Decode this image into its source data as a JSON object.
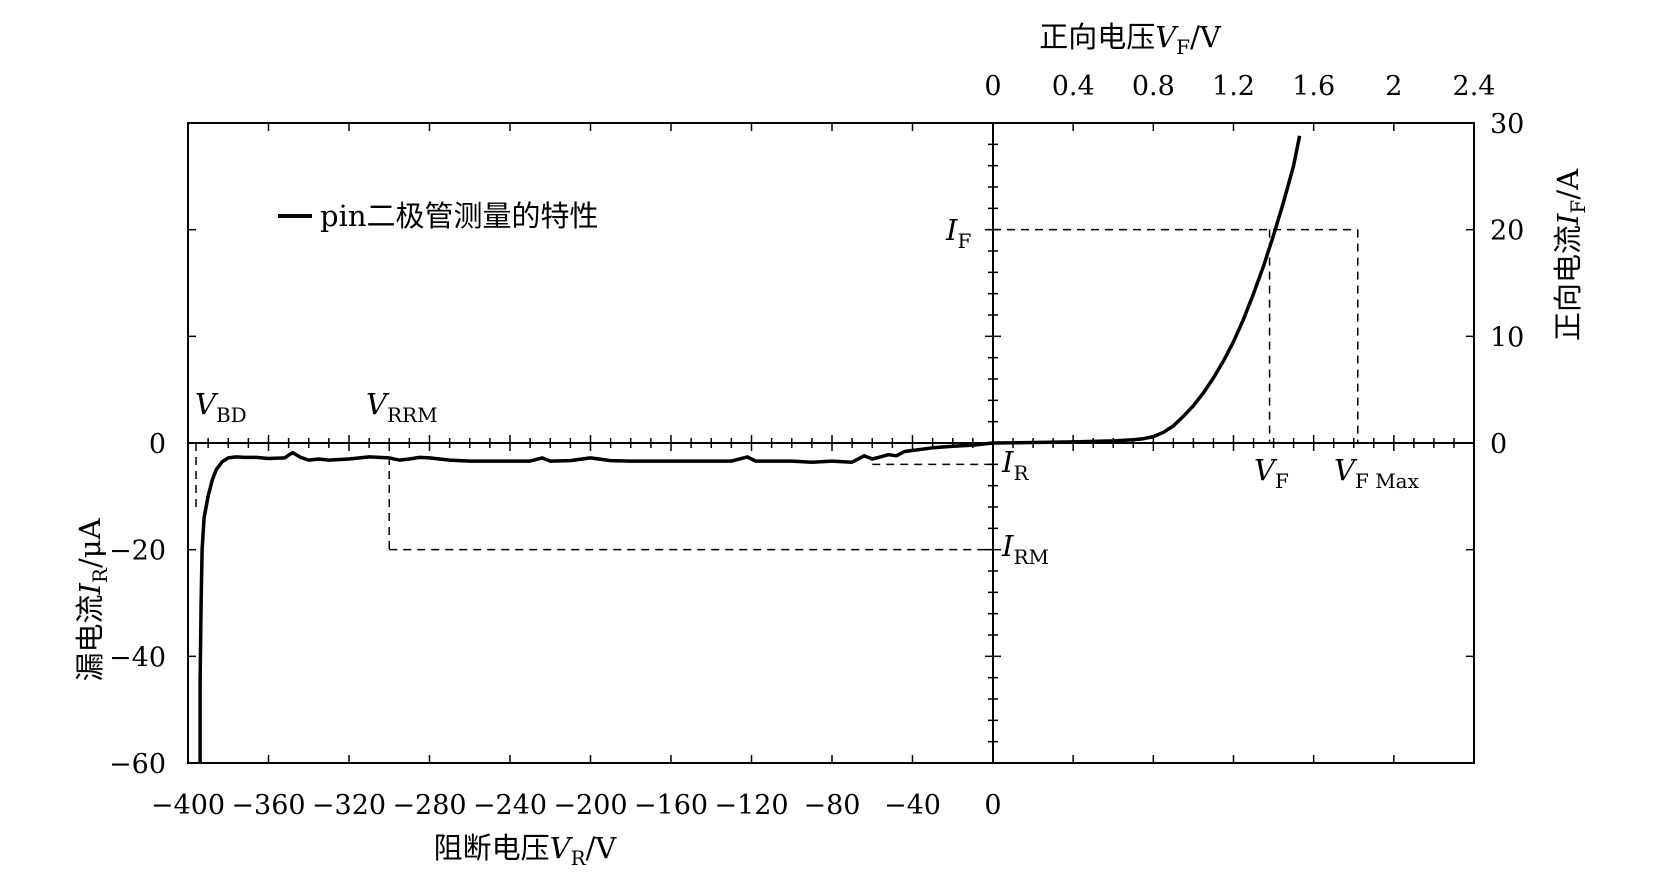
{
  "chart_data": {
    "type": "line",
    "axes": {
      "top_x": {
        "label_text": "正向电压",
        "label_symbol": "V",
        "label_sub": "F",
        "label_unit": "/V",
        "range": [
          0,
          2.4
        ],
        "ticks": [
          "0",
          "0.4",
          "0.8",
          "1.2",
          "1.6",
          "2",
          "2.4"
        ]
      },
      "bottom_x": {
        "label_text": "阻断电压",
        "label_symbol": "V",
        "label_sub": "R",
        "label_unit": "/V",
        "range": [
          -400,
          0
        ],
        "ticks": [
          "−400",
          "−360",
          "−320",
          "−280",
          "−240",
          "−200",
          "−160",
          "−120",
          "−80",
          "−40",
          "0"
        ]
      },
      "right_y": {
        "label_text": "正向电流",
        "label_symbol": "I",
        "label_sub": "F",
        "label_unit": "/A",
        "range": [
          0,
          30
        ],
        "ticks": [
          "0",
          "10",
          "20",
          "30"
        ]
      },
      "left_y": {
        "label_text": "漏电流",
        "label_symbol": "I",
        "label_sub": "R",
        "label_unit": "/μA",
        "range": [
          -60,
          0
        ],
        "ticks": [
          "0",
          "−20",
          "−40",
          "−60"
        ]
      }
    },
    "legend": {
      "label": "pin二极管测量的特性",
      "position": "top-left"
    },
    "series": [
      {
        "name": "pin二极管测量的特性",
        "quadrant": "forward",
        "x": [
          0,
          0.2,
          0.4,
          0.6,
          0.7,
          0.75,
          0.8,
          0.85,
          0.9,
          0.95,
          1.0,
          1.05,
          1.1,
          1.15,
          1.2,
          1.25,
          1.3,
          1.35,
          1.4,
          1.45,
          1.5,
          1.53
        ],
        "y": [
          0,
          0.05,
          0.1,
          0.2,
          0.3,
          0.4,
          0.6,
          1.0,
          1.6,
          2.5,
          3.5,
          4.7,
          6.1,
          7.7,
          9.5,
          11.6,
          14.0,
          16.6,
          19.5,
          22.6,
          26.0,
          28.8
        ]
      },
      {
        "name": "pin二极管测量的特性",
        "quadrant": "reverse",
        "x": [
          -394,
          -394,
          -393.5,
          -393,
          -392,
          -391,
          -390,
          -388,
          -386,
          -383,
          -380,
          -376,
          -372,
          -366,
          -360,
          -352,
          -348,
          -344,
          -340,
          -335,
          -330,
          -320,
          -310,
          -300,
          -295,
          -290,
          -285,
          -280,
          -270,
          -260,
          -250,
          -240,
          -230,
          -224,
          -220,
          -210,
          -200,
          -190,
          -180,
          -170,
          -160,
          -150,
          -140,
          -130,
          -122,
          -118,
          -110,
          -100,
          -90,
          -80,
          -70,
          -64,
          -60,
          -56,
          -52,
          -48,
          -44,
          -40,
          -30,
          -20,
          -10,
          0
        ],
        "y": [
          -60,
          -45,
          -30,
          -20,
          -14,
          -12,
          -10,
          -7,
          -5,
          -3.5,
          -2.8,
          -2.6,
          -2.7,
          -2.7,
          -2.9,
          -2.8,
          -1.8,
          -2.7,
          -3.2,
          -3.0,
          -3.2,
          -3.0,
          -2.6,
          -2.8,
          -3.2,
          -3.0,
          -2.7,
          -2.8,
          -3.2,
          -3.4,
          -3.4,
          -3.4,
          -3.4,
          -2.8,
          -3.4,
          -3.3,
          -2.8,
          -3.3,
          -3.4,
          -3.4,
          -3.4,
          -3.4,
          -3.4,
          -3.4,
          -2.6,
          -3.4,
          -3.4,
          -3.4,
          -3.6,
          -3.4,
          -3.6,
          -2.4,
          -3.0,
          -2.6,
          -2.2,
          -2.4,
          -1.6,
          -1.4,
          -0.9,
          -0.6,
          -0.4,
          0
        ]
      }
    ],
    "reference_lines": {
      "forward": {
        "VF": 1.38,
        "IF": 20,
        "VFMax": 1.82
      },
      "reverse": {
        "VBD": -396,
        "VRRM": -300,
        "IR": -4,
        "IRM": -20,
        "IR_from": -60
      }
    },
    "annotations": {
      "IF": {
        "symbol": "I",
        "sub": "F"
      },
      "IR": {
        "symbol": "I",
        "sub": "R"
      },
      "IRM": {
        "symbol": "I",
        "sub": "RM"
      },
      "VF": {
        "symbol": "V",
        "sub": "F"
      },
      "VFMax": {
        "symbol": "V",
        "sub": "F Max"
      },
      "VBD": {
        "symbol": "V",
        "sub": "BD"
      },
      "VRRM": {
        "symbol": "V",
        "sub": "RRM"
      }
    }
  }
}
